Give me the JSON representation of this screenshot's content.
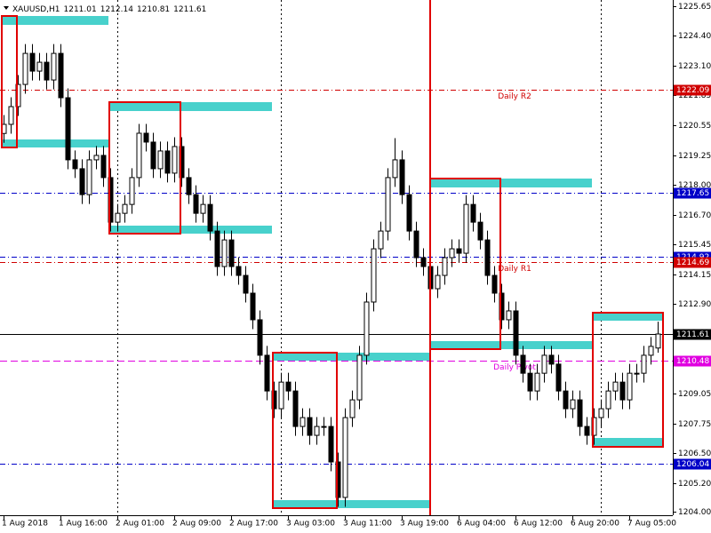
{
  "chart_data": {
    "type": "candlestick",
    "symbol": "XAUUSD,H1",
    "ohlc": [
      1211.01,
      1212.14,
      1210.81,
      1211.61
    ],
    "ylim": [
      1204.0,
      1225.65
    ],
    "yticks": [
      {
        "value": 1204.0,
        "label": "1204.00"
      },
      {
        "value": 1205.2,
        "label": "1205.20"
      },
      {
        "value": 1206.5,
        "label": "1206.50"
      },
      1207.75,
      1209.05,
      {
        "value": 1212.9,
        "label": "1212.90"
      },
      1214.15,
      1215.45,
      {
        "value": 1216.7,
        "label": "1216.70"
      },
      {
        "value": 1218.0,
        "label": "1218.00"
      },
      1219.25,
      1220.55,
      1221.85,
      {
        "value": 1223.1,
        "label": "1223.10"
      },
      {
        "value": 1224.4,
        "label": "1224.40"
      },
      1225.65
    ],
    "grid": false,
    "up_color": "#ffffff",
    "down_color": "#000000",
    "categories": [
      "1 Aug 2018",
      null,
      null,
      null,
      null,
      null,
      null,
      null,
      "1 Aug 16:00",
      null,
      null,
      null,
      null,
      null,
      null,
      null,
      "2 Aug 01:00",
      null,
      null,
      null,
      null,
      null,
      null,
      null,
      "2 Aug 09:00",
      null,
      null,
      null,
      null,
      null,
      null,
      null,
      "2 Aug 17:00",
      null,
      null,
      null,
      null,
      null,
      null,
      null,
      "3 Aug 03:00",
      null,
      null,
      null,
      null,
      null,
      null,
      null,
      "3 Aug 11:00",
      null,
      null,
      null,
      null,
      null,
      null,
      null,
      "3 Aug 19:00",
      null,
      null,
      null,
      null,
      null,
      null,
      null,
      "6 Aug 04:00",
      null,
      null,
      null,
      null,
      null,
      null,
      null,
      "6 Aug 12:00",
      null,
      null,
      null,
      null,
      null,
      null,
      null,
      "6 Aug 20:00",
      null,
      null,
      null,
      null,
      null,
      null,
      null,
      "7 Aug 05:00",
      null,
      null,
      null,
      null
    ],
    "candles": [
      [
        1220.2,
        1220.99,
        1219.8,
        1220.59
      ],
      [
        1220.59,
        1221.75,
        1220.19,
        1221.35
      ],
      [
        1221.35,
        1222.7,
        1220.95,
        1222.3
      ],
      [
        1222.3,
        1224.03,
        1221.9,
        1223.63
      ],
      [
        1223.63,
        1224.03,
        1222.47,
        1222.87
      ],
      [
        1222.87,
        1223.65,
        1222.47,
        1223.25
      ],
      [
        1223.25,
        1223.65,
        1222.09,
        1222.49
      ],
      [
        1222.49,
        1224.03,
        1222.09,
        1223.63
      ],
      [
        1223.63,
        1224.03,
        1221.33,
        1221.73
      ],
      [
        1221.73,
        1222.13,
        1218.67,
        1219.07
      ],
      [
        1219.07,
        1219.47,
        1218.29,
        1218.69
      ],
      [
        1218.69,
        1219.09,
        1217.18,
        1217.58
      ],
      [
        1217.58,
        1219.47,
        1217.18,
        1219.07
      ],
      [
        1219.07,
        1219.66,
        1218.67,
        1219.26
      ],
      [
        1219.26,
        1219.66,
        1217.91,
        1218.31
      ],
      [
        1218.31,
        1218.71,
        1216.0,
        1216.4
      ],
      [
        1216.4,
        1217.18,
        1216.0,
        1216.78
      ],
      [
        1216.78,
        1217.56,
        1216.38,
        1217.16
      ],
      [
        1217.16,
        1218.71,
        1216.76,
        1218.31
      ],
      [
        1218.31,
        1220.61,
        1217.91,
        1220.21
      ],
      [
        1220.21,
        1220.61,
        1219.43,
        1219.83
      ],
      [
        1219.83,
        1220.23,
        1218.29,
        1218.69
      ],
      [
        1218.69,
        1219.85,
        1218.29,
        1219.45
      ],
      [
        1219.45,
        1219.85,
        1218.1,
        1218.5
      ],
      [
        1218.5,
        1220.04,
        1218.1,
        1219.64
      ],
      [
        1219.64,
        1220.04,
        1217.91,
        1218.31
      ],
      [
        1218.31,
        1218.71,
        1217.18,
        1217.58
      ],
      [
        1217.58,
        1217.98,
        1216.38,
        1216.78
      ],
      [
        1216.78,
        1217.56,
        1216.38,
        1217.16
      ],
      [
        1217.16,
        1217.56,
        1215.62,
        1216.02
      ],
      [
        1216.02,
        1216.42,
        1214.1,
        1214.5
      ],
      [
        1214.5,
        1216.04,
        1214.1,
        1215.64
      ],
      [
        1215.64,
        1216.04,
        1214.1,
        1214.5
      ],
      [
        1214.5,
        1214.9,
        1213.72,
        1214.12
      ],
      [
        1214.12,
        1214.52,
        1212.96,
        1213.36
      ],
      [
        1213.36,
        1213.76,
        1211.82,
        1212.22
      ],
      [
        1212.22,
        1212.62,
        1210.3,
        1210.7
      ],
      [
        1210.7,
        1211.1,
        1208.77,
        1209.17
      ],
      [
        1209.17,
        1209.57,
        1208.01,
        1208.41
      ],
      [
        1208.41,
        1209.95,
        1208.01,
        1209.55
      ],
      [
        1209.55,
        1209.95,
        1208.77,
        1209.17
      ],
      [
        1209.17,
        1209.57,
        1207.25,
        1207.65
      ],
      [
        1207.65,
        1208.43,
        1207.25,
        1208.03
      ],
      [
        1208.03,
        1208.43,
        1206.87,
        1207.27
      ],
      [
        1207.27,
        1208.05,
        1206.87,
        1207.65
      ],
      [
        1207.65,
        1208.05,
        1207.25,
        1207.65
      ],
      [
        1207.65,
        1208.05,
        1205.73,
        1206.13
      ],
      [
        1206.13,
        1206.53,
        1204.21,
        1204.61
      ],
      [
        1204.61,
        1208.43,
        1204.21,
        1208.03
      ],
      [
        1208.03,
        1209.19,
        1207.63,
        1208.79
      ],
      [
        1208.79,
        1211.1,
        1208.39,
        1210.7
      ],
      [
        1210.7,
        1213.38,
        1210.3,
        1212.98
      ],
      [
        1212.98,
        1215.66,
        1212.58,
        1215.26
      ],
      [
        1215.26,
        1216.42,
        1214.86,
        1216.02
      ],
      [
        1216.02,
        1218.71,
        1215.62,
        1218.31
      ],
      [
        1218.31,
        1220.0,
        1217.91,
        1219.07
      ],
      [
        1219.07,
        1219.47,
        1217.18,
        1217.58
      ],
      [
        1217.58,
        1217.98,
        1215.62,
        1216.02
      ],
      [
        1216.02,
        1216.42,
        1214.48,
        1214.88
      ],
      [
        1214.88,
        1215.28,
        1214.1,
        1214.5
      ],
      [
        1214.5,
        1214.9,
        1213.15,
        1213.55
      ],
      [
        1213.55,
        1214.52,
        1213.15,
        1214.12
      ],
      [
        1214.12,
        1215.28,
        1213.72,
        1214.88
      ],
      [
        1214.88,
        1215.66,
        1214.48,
        1215.26
      ],
      [
        1215.26,
        1215.66,
        1214.67,
        1215.07
      ],
      [
        1215.07,
        1217.56,
        1214.67,
        1217.16
      ],
      [
        1217.16,
        1217.56,
        1216.0,
        1216.4
      ],
      [
        1216.4,
        1216.8,
        1215.24,
        1215.64
      ],
      [
        1215.64,
        1216.04,
        1213.72,
        1214.12
      ],
      [
        1214.12,
        1214.52,
        1212.96,
        1213.36
      ],
      [
        1213.36,
        1213.76,
        1211.82,
        1212.22
      ],
      [
        1212.22,
        1213.0,
        1211.82,
        1212.6
      ],
      [
        1212.6,
        1213.0,
        1210.3,
        1210.7
      ],
      [
        1210.7,
        1211.1,
        1209.53,
        1209.93
      ],
      [
        1209.93,
        1210.33,
        1208.77,
        1209.17
      ],
      [
        1209.17,
        1210.33,
        1208.77,
        1209.93
      ],
      [
        1209.93,
        1211.1,
        1209.53,
        1210.7
      ],
      [
        1210.7,
        1211.1,
        1209.92,
        1210.32
      ],
      [
        1210.32,
        1210.72,
        1208.77,
        1209.17
      ],
      [
        1209.17,
        1209.57,
        1208.01,
        1208.41
      ],
      [
        1208.41,
        1209.19,
        1208.01,
        1208.79
      ],
      [
        1208.79,
        1209.19,
        1207.25,
        1207.65
      ],
      [
        1207.65,
        1208.05,
        1206.87,
        1207.27
      ],
      [
        1207.27,
        1208.43,
        1206.87,
        1208.03
      ],
      [
        1208.03,
        1208.81,
        1207.63,
        1208.41
      ],
      [
        1208.41,
        1209.57,
        1208.01,
        1209.17
      ],
      [
        1209.17,
        1209.95,
        1208.77,
        1209.55
      ],
      [
        1209.55,
        1209.95,
        1208.39,
        1208.79
      ],
      [
        1208.79,
        1210.33,
        1208.39,
        1209.93
      ],
      [
        1209.93,
        1210.33,
        1209.53,
        1209.93
      ],
      [
        1209.93,
        1211.1,
        1209.53,
        1210.7
      ],
      [
        1210.7,
        1211.48,
        1210.3,
        1211.08
      ],
      [
        1211.01,
        1212.14,
        1210.81,
        1211.61
      ]
    ],
    "levels": [
      {
        "name": "Daily R2",
        "value": 1222.09,
        "color": "#d00000",
        "style": "dashdot"
      },
      {
        "value": 1217.65,
        "color": "#0000c8",
        "style": "dashdot"
      },
      {
        "value": 1214.92,
        "color": "#0000c8",
        "style": "dashdot"
      },
      {
        "name": "Daily R1",
        "value": 1214.69,
        "color": "#d00000",
        "style": "dashdot"
      },
      {
        "value": 1211.61,
        "color": "#000000",
        "style": "solid"
      },
      {
        "name": "Daily Pivot",
        "value": 1210.48,
        "color": "#e000e0",
        "style": "dashed"
      },
      {
        "value": 1206.04,
        "color": "#0000c8",
        "style": "dashdot"
      }
    ]
  }
}
